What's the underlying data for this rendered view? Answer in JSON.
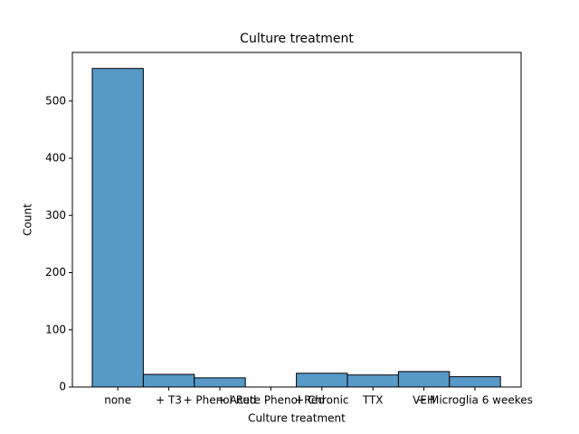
{
  "chart_data": {
    "type": "bar",
    "title": "Culture treatment",
    "x_label": "Culture treatment",
    "y_label": "Count",
    "categories": [
      "none",
      "+ T3",
      "+ Phenol Red",
      "+ Acute Phenol Red",
      "+ Chronic",
      "TTX",
      "VEH",
      "+ Microglia 6 weekes"
    ],
    "values": [
      557,
      22,
      16,
      0,
      24,
      21,
      27,
      18
    ],
    "color": "#5799c7",
    "edge_color": "#000000",
    "ylim": [
      0,
      585
    ],
    "yticks": [
      0,
      100,
      200,
      300,
      400,
      500
    ],
    "grid": false
  }
}
